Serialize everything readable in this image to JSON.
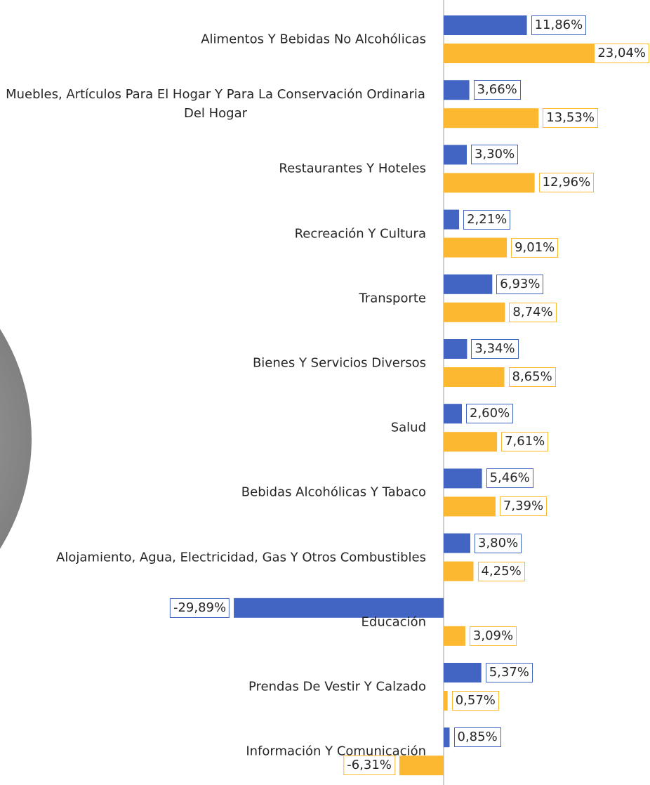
{
  "chart_data": {
    "type": "bar",
    "orientation": "horizontal",
    "categories": [
      "Alimentos Y Bebidas No Alcohólicas",
      "Muebles, Artículos Para El Hogar Y Para La Conservación Ordinaria Del Hogar",
      "Restaurantes Y Hoteles",
      "Recreación Y Cultura",
      "Transporte",
      "Bienes Y Servicios Diversos",
      "Salud",
      "Bebidas Alcohólicas Y Tabaco",
      "Alojamiento, Agua, Electricidad, Gas Y Otros Combustibles",
      "Educación",
      "Prendas De Vestir Y Calzado",
      "Información Y Comunicación"
    ],
    "series": [
      {
        "color": "#4264c2",
        "values": [
          11.86,
          3.66,
          3.3,
          2.21,
          6.93,
          3.34,
          2.6,
          5.46,
          3.8,
          -29.89,
          5.37,
          0.85
        ],
        "value_labels": [
          "11,86%",
          "3,66%",
          "3,30%",
          "2,21%",
          "6,93%",
          "3,34%",
          "2,60%",
          "5,46%",
          "3,80%",
          "-29,89%",
          "5,37%",
          "0,85%"
        ]
      },
      {
        "color": "#fbb830",
        "values": [
          23.04,
          13.53,
          12.96,
          9.01,
          8.74,
          8.65,
          7.61,
          7.39,
          4.25,
          3.09,
          0.57,
          -6.31
        ],
        "value_labels": [
          "23,04%",
          "13,53%",
          "12,96%",
          "9,01%",
          "8,74%",
          "8,65%",
          "7,61%",
          "7,39%",
          "4,25%",
          "3,09%",
          "0,57%",
          "-6,31%"
        ]
      }
    ]
  }
}
